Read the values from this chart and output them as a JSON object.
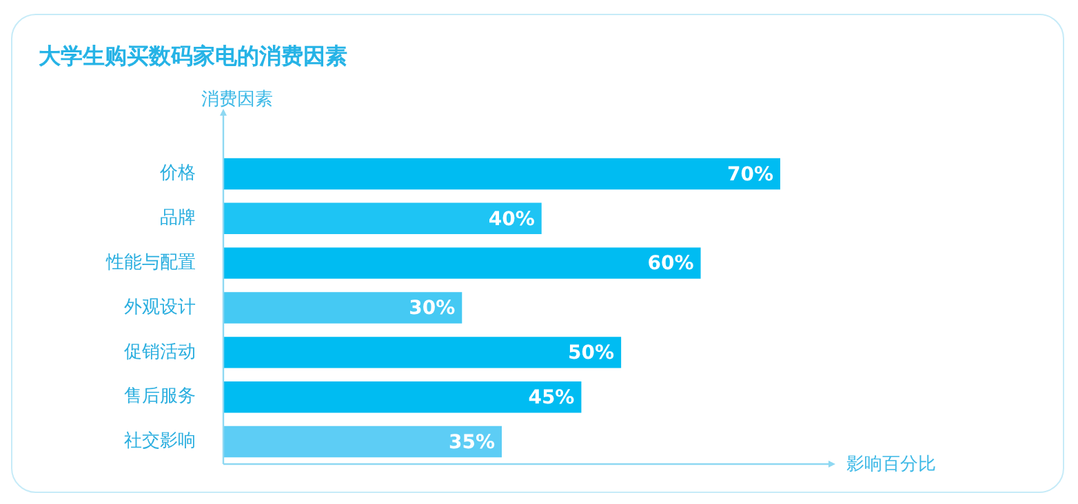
{
  "chart_data": {
    "type": "bar",
    "orientation": "horizontal",
    "title": "大学生购买数码家电的消费因素",
    "xlabel": "影响百分比",
    "ylabel": "消费因素",
    "categories": [
      "价格",
      "品牌",
      "性能与配置",
      "外观设计",
      "促销活动",
      "售后服务",
      "社交影响"
    ],
    "values": [
      70,
      40,
      60,
      30,
      50,
      45,
      35
    ],
    "colors": [
      "#00bcf2",
      "#1ec4f4",
      "#00bcf2",
      "#45c9f3",
      "#00bcf2",
      "#00bcf2",
      "#5dcdf5"
    ],
    "value_labels": [
      "70%",
      "40%",
      "60%",
      "30%",
      "50%",
      "45%",
      "35%"
    ]
  }
}
